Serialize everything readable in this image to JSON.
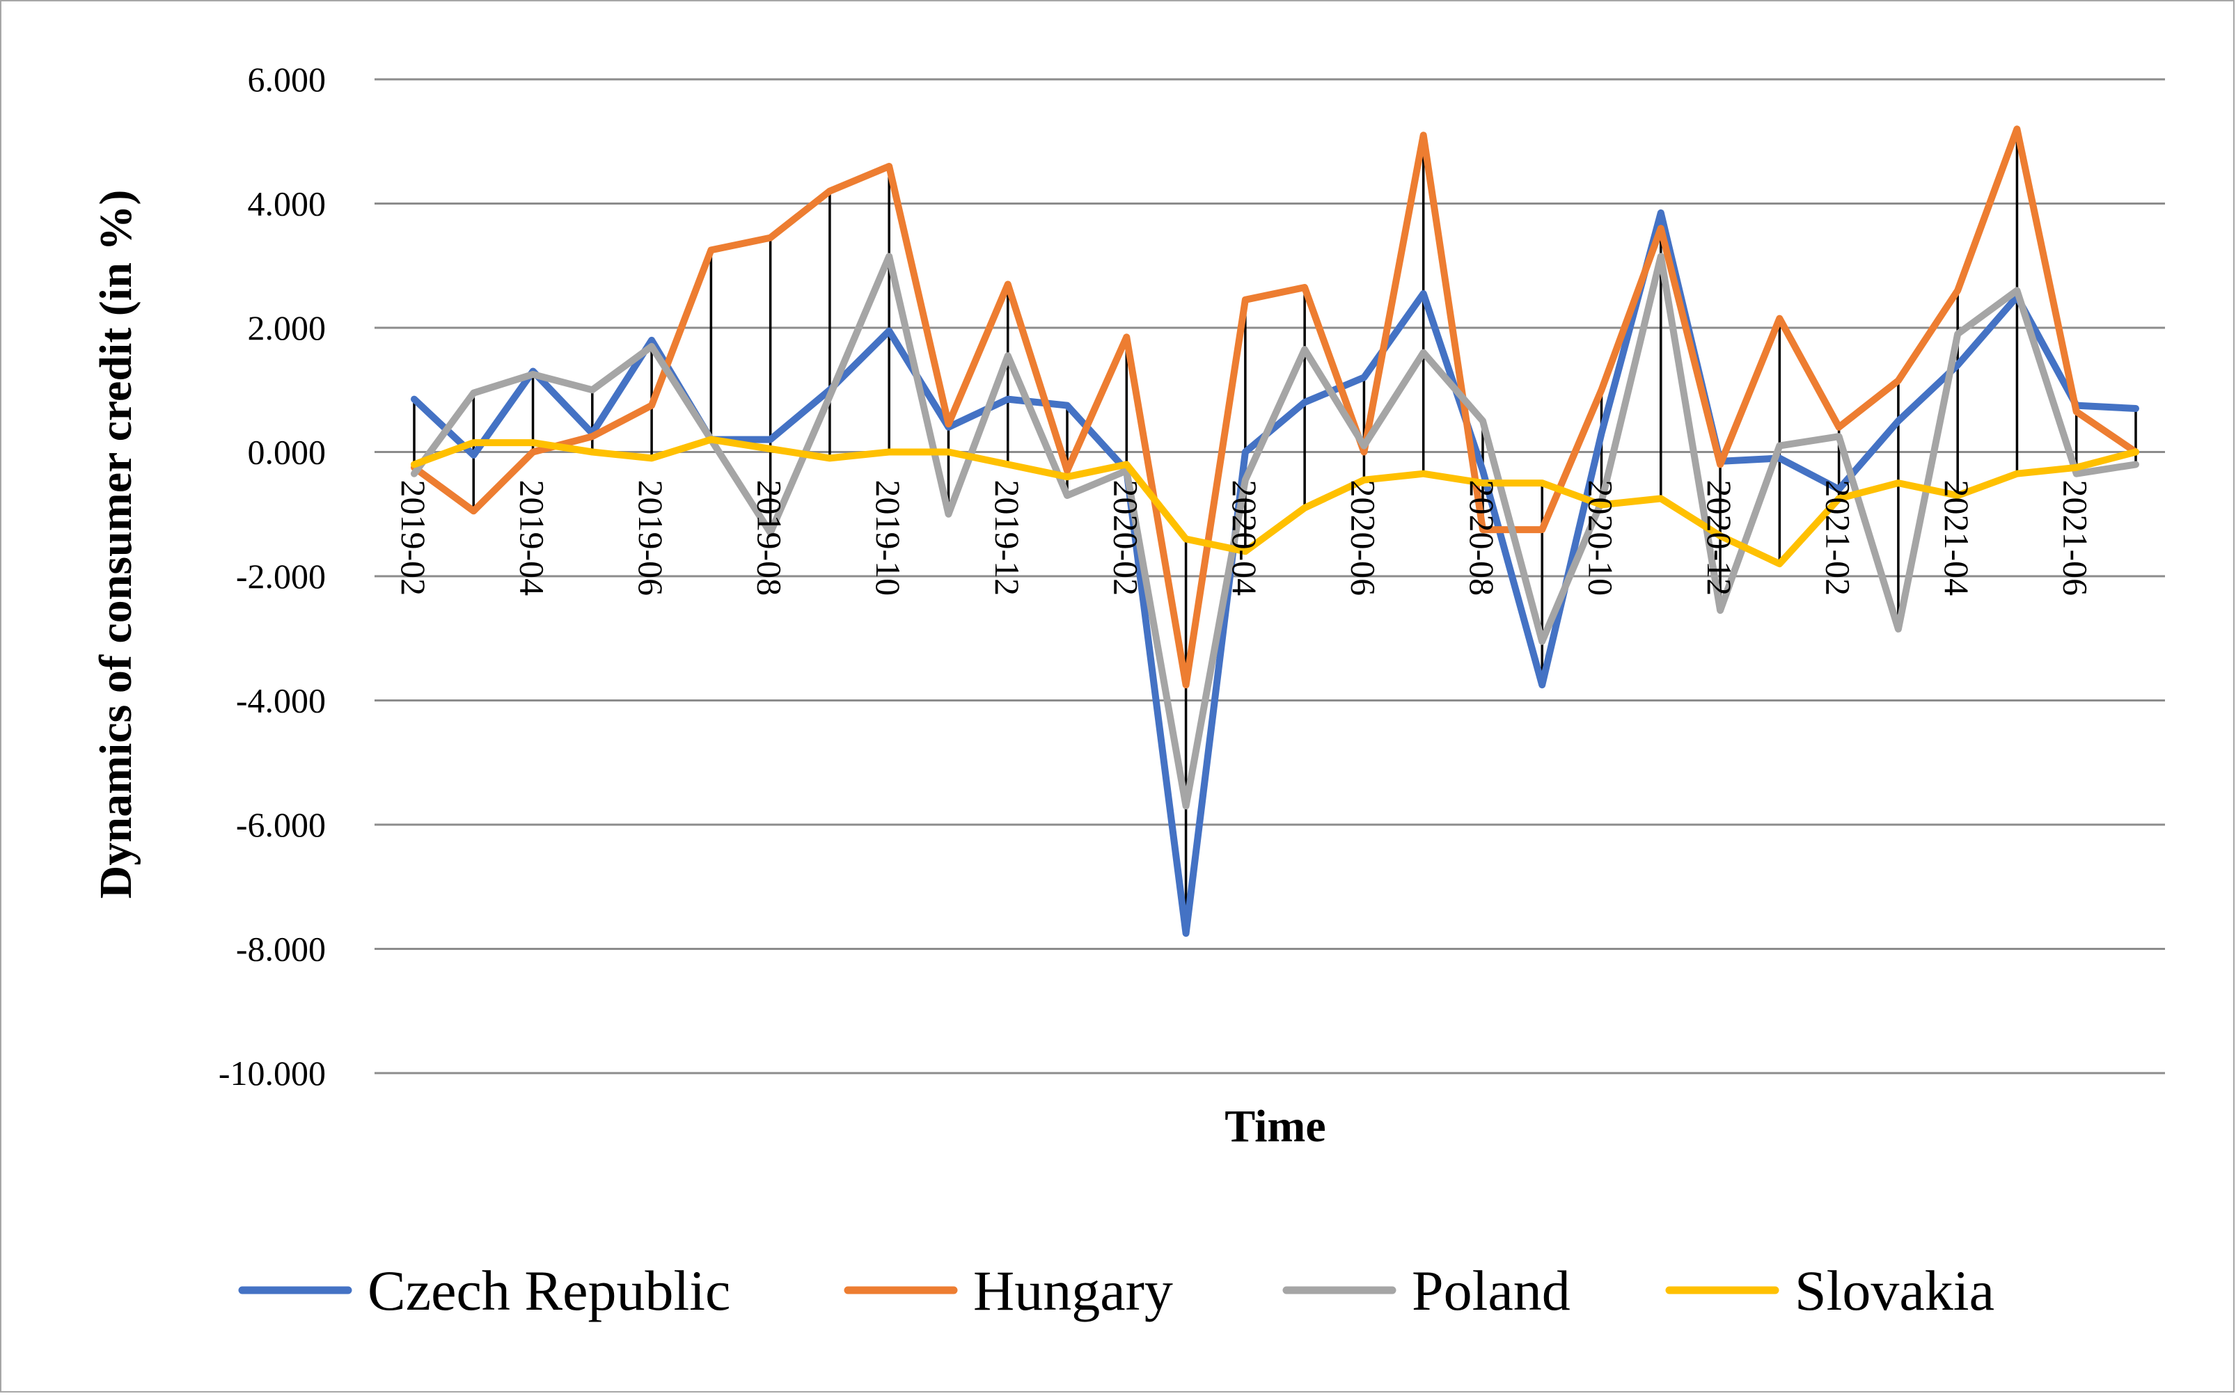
{
  "chart_data": {
    "type": "line",
    "title": "",
    "xlabel": "Time",
    "ylabel": "Dynamics of consumer credit (in %)",
    "ylim": [
      -10,
      6
    ],
    "ytick_values": [
      6,
      4,
      2,
      0,
      -2,
      -4,
      -6,
      -8,
      -10
    ],
    "ytick_labels": [
      "6.000",
      "4.000",
      "2.000",
      "0.000",
      "-2.000",
      "-4.000",
      "-6.000",
      "-8.000",
      "-10.000"
    ],
    "grid": "horizontal",
    "x": [
      "2019-02",
      "2019-03",
      "2019-04",
      "2019-05",
      "2019-06",
      "2019-07",
      "2019-08",
      "2019-09",
      "2019-10",
      "2019-11",
      "2019-12",
      "2020-01",
      "2020-02",
      "2020-03",
      "2020-04",
      "2020-05",
      "2020-06",
      "2020-07",
      "2020-08",
      "2020-09",
      "2020-10",
      "2020-11",
      "2020-12",
      "2021-01",
      "2021-02",
      "2021-03",
      "2021-04",
      "2021-05",
      "2021-06",
      "2021-07"
    ],
    "xtick_labels": [
      "2019-02",
      "2019-04",
      "2019-06",
      "2019-08",
      "2019-10",
      "2019-12",
      "2020-02",
      "2020-04",
      "2020-06",
      "2020-08",
      "2020-10",
      "2020-12",
      "2021-02",
      "2021-04",
      "2021-06"
    ],
    "xtick_indices": [
      0,
      2,
      4,
      6,
      8,
      10,
      12,
      14,
      16,
      18,
      20,
      22,
      24,
      26,
      28
    ],
    "series": [
      {
        "name": "Czech Republic",
        "color": "#4472C4",
        "values": [
          0.85,
          -0.05,
          1.3,
          0.3,
          1.8,
          0.2,
          0.2,
          1.0,
          1.95,
          0.4,
          0.85,
          0.75,
          -0.3,
          -7.75,
          0.0,
          0.8,
          1.2,
          2.55,
          -0.3,
          -3.75,
          0.3,
          3.85,
          -0.15,
          -0.1,
          -0.6,
          0.5,
          1.4,
          2.5,
          0.75,
          0.7
        ]
      },
      {
        "name": "Hungary",
        "color": "#ED7D31",
        "values": [
          -0.25,
          -0.95,
          0.0,
          0.25,
          0.75,
          3.25,
          3.45,
          4.2,
          4.6,
          0.45,
          2.7,
          -0.3,
          1.85,
          -3.75,
          2.45,
          2.65,
          0.0,
          5.1,
          -1.25,
          -1.25,
          1.0,
          3.6,
          -0.2,
          2.15,
          0.4,
          1.15,
          2.6,
          5.2,
          0.65,
          0.0
        ]
      },
      {
        "name": "Poland",
        "color": "#A5A5A5",
        "values": [
          -0.35,
          0.95,
          1.25,
          1.0,
          1.7,
          0.2,
          -1.3,
          0.9,
          3.15,
          -1.0,
          1.55,
          -0.7,
          -0.3,
          -5.7,
          -0.45,
          1.65,
          0.1,
          1.6,
          0.5,
          -3.05,
          -0.8,
          3.15,
          -2.55,
          0.1,
          0.25,
          -2.85,
          1.9,
          2.6,
          -0.35,
          -0.2
        ]
      },
      {
        "name": "Slovakia",
        "color": "#FFC000",
        "values": [
          -0.2,
          0.15,
          0.15,
          0.0,
          -0.1,
          0.2,
          0.05,
          -0.1,
          0.0,
          0.0,
          -0.2,
          -0.4,
          -0.2,
          -1.4,
          -1.6,
          -0.9,
          -0.45,
          -0.35,
          -0.5,
          -0.5,
          -0.85,
          -0.75,
          -1.35,
          -1.8,
          -0.75,
          -0.5,
          -0.7,
          -0.35,
          -0.25,
          0.0
        ]
      }
    ],
    "legend_position": "bottom"
  }
}
